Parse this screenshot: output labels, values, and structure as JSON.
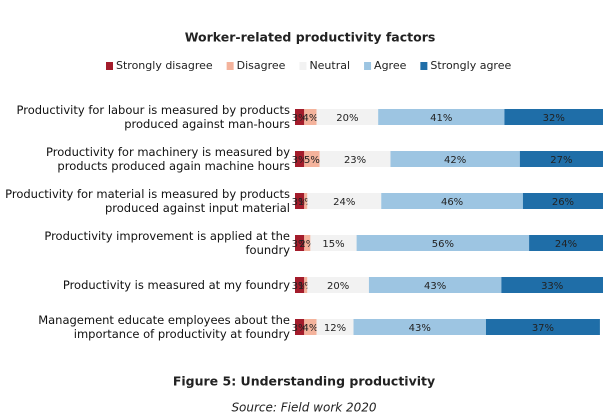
{
  "chart_data": {
    "type": "stacked-bar-horizontal",
    "title": "Worker-related productivity factors",
    "caption": "Figure 5: Understanding productivity",
    "source": "Source: Field work 2020",
    "xlim": [
      0,
      100
    ],
    "categories": [
      "Productivity for labour is measured by products produced against man-hours",
      "Productivity for machinery is measured by products produced again machine hours",
      "Productivity for material is measured by products produced against input material",
      "Productivity improvement is applied at the foundry",
      "Productivity is measured at my foundry",
      "Management educate employees about the importance of productivity at foundry"
    ],
    "series": [
      {
        "name": "Strongly disagree",
        "color": "#a31c2b",
        "values": [
          3,
          3,
          3,
          3,
          3,
          3
        ],
        "value_labels": [
          "3%",
          "3%",
          "3%",
          "3%",
          "3%",
          "3%"
        ]
      },
      {
        "name": "Disagree",
        "color": "#f4b39c",
        "values": [
          4,
          5,
          1,
          2,
          1,
          4
        ],
        "value_labels": [
          "4%",
          "5%",
          "1%",
          "2%",
          "1%",
          "4%"
        ]
      },
      {
        "name": "Neutral",
        "color": "#f2f2f2",
        "values": [
          20,
          23,
          24,
          15,
          20,
          12
        ],
        "value_labels": [
          "20%",
          "23%",
          "24%",
          "15%",
          "20%",
          "12%"
        ]
      },
      {
        "name": "Agree",
        "color": "#9dc5e2",
        "values": [
          41,
          42,
          46,
          56,
          43,
          43
        ],
        "value_labels": [
          "41%",
          "42%",
          "46%",
          "56%",
          "43%",
          "43%"
        ]
      },
      {
        "name": "Strongly agree",
        "color": "#1f6ea8",
        "values": [
          32,
          27,
          26,
          24,
          33,
          37
        ],
        "value_labels": [
          "32%",
          "27%",
          "26%",
          "24%",
          "33%",
          "37%"
        ]
      }
    ]
  }
}
